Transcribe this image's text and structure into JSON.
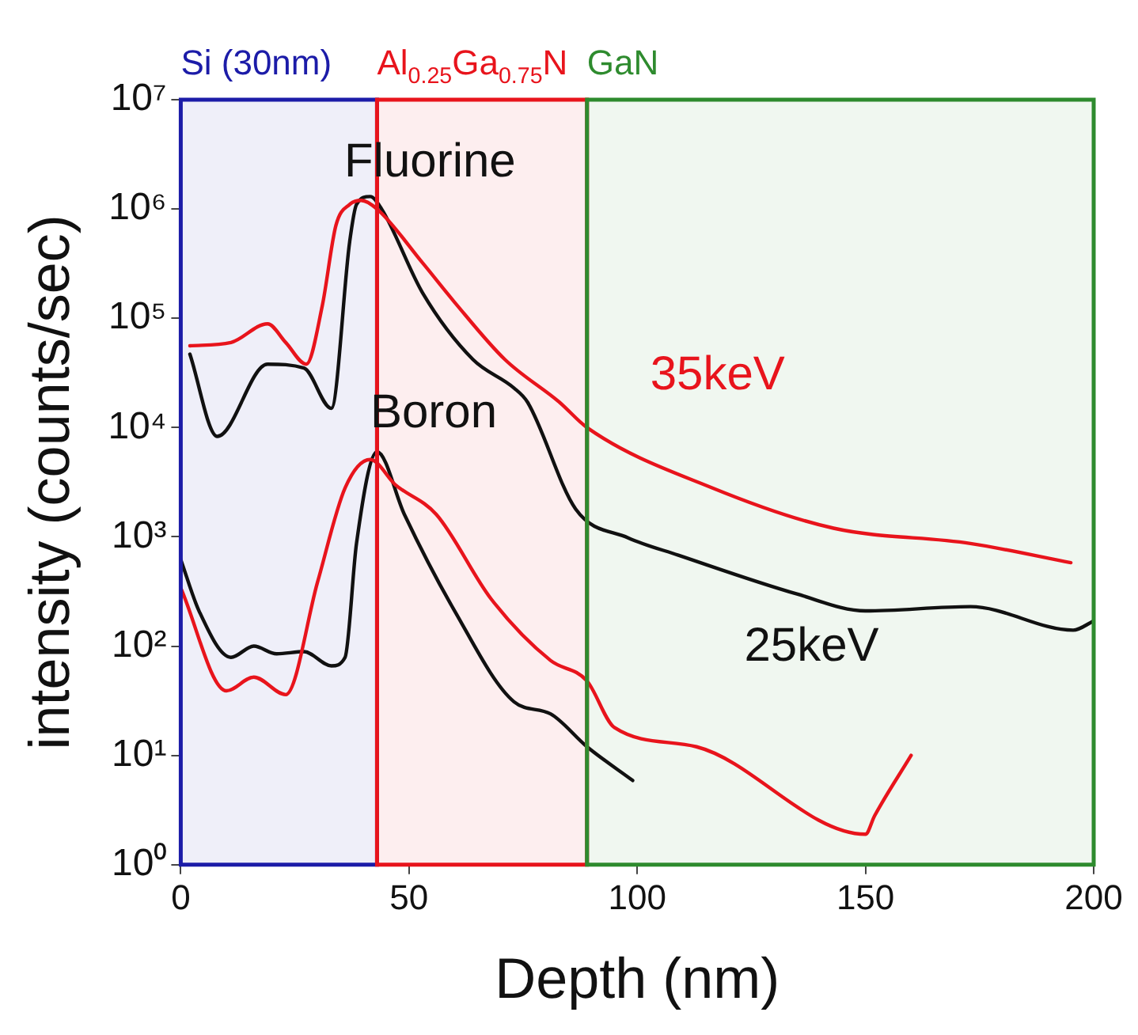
{
  "chart_data": {
    "type": "line",
    "xlabel": "Depth (nm)",
    "ylabel": "intensity (counts/sec)",
    "log": "y",
    "grid": false,
    "legend": false,
    "marker": "none",
    "line_style": "solid",
    "xlim": [
      0,
      200
    ],
    "xticks": [
      0,
      50,
      100,
      150,
      200
    ],
    "ylim": [
      1,
      10000000
    ],
    "yticks": [
      {
        "value": 1,
        "label": "10⁰"
      },
      {
        "value": 10,
        "label": "10¹"
      },
      {
        "value": 100,
        "label": "10²"
      },
      {
        "value": 1000,
        "label": "10³"
      },
      {
        "value": 10000,
        "label": "10⁴"
      },
      {
        "value": 100000,
        "label": "10⁵"
      },
      {
        "value": 1000000,
        "label": "10⁶"
      },
      {
        "value": 10000000,
        "label": "10⁷"
      }
    ],
    "bands": [
      {
        "axis": "x",
        "from": 0,
        "to": 43,
        "label": "Si (30nm)",
        "color": "#1c1ca8"
      },
      {
        "axis": "x",
        "from": 43,
        "to": 89,
        "label": "Al$_{0.25}$Ga$_{0.75}$N",
        "color": "#e8141c"
      },
      {
        "axis": "x",
        "from": 89,
        "to": 200,
        "label": "GaN",
        "color": "#2e8b2e"
      }
    ],
    "series": [
      {
        "color": "#e8141c",
        "x": [
          2,
          11,
          19,
          23,
          27.5,
          31,
          34,
          37,
          39.5,
          43,
          53,
          60,
          71,
          83,
          89,
          116.5,
          143,
          173,
          195
        ],
        "values": [
          56000,
          60000,
          89000,
          60000,
          38000,
          130000,
          710000,
          1100000,
          1200000,
          1000000,
          320000,
          140000,
          42000,
          17000,
          10000,
          2800,
          1200,
          870,
          580
        ]
      },
      {
        "color": "#111111",
        "x": [
          2,
          8,
          19,
          27,
          33,
          37,
          38.5,
          41.5,
          44,
          53,
          64,
          73,
          76,
          86.5,
          98,
          109,
          135,
          150,
          173,
          195.5,
          200
        ],
        "values": [
          47000,
          8300,
          38000,
          35000,
          15000,
          500000,
          1100000,
          1300000,
          1000000,
          170000,
          42000,
          23000,
          17000,
          1800,
          980,
          680,
          300,
          210,
          230,
          140,
          170
        ]
      },
      {
        "color": "#e8141c",
        "x": [
          0,
          10,
          16,
          23,
          30,
          36,
          41.5,
          47,
          56,
          68,
          81,
          89,
          95,
          113,
          150,
          152,
          160
        ],
        "values": [
          340,
          39,
          52,
          36,
          390,
          2800,
          5100,
          3000,
          1600,
          270,
          74,
          48,
          18,
          12,
          1.9,
          2.8,
          10
        ]
      },
      {
        "color": "#111111",
        "x": [
          0,
          4,
          11,
          16,
          21,
          27,
          33,
          36,
          38.5,
          43,
          49,
          60,
          73,
          81,
          89,
          99
        ],
        "values": [
          620,
          210,
          79,
          100,
          85,
          89,
          66,
          79,
          870,
          6000,
          1600,
          210,
          31,
          24,
          12,
          5.9
        ]
      }
    ],
    "annotations": [
      "Fluorine",
      "Boron",
      "35keV",
      "25keV"
    ]
  }
}
